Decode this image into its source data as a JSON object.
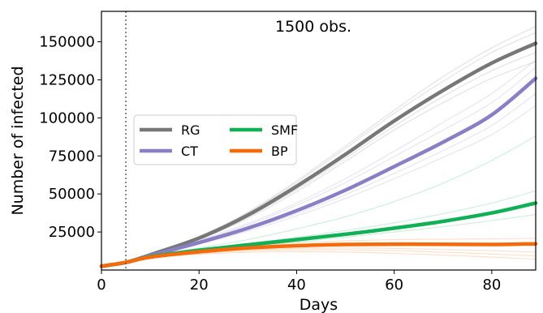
{
  "chart_data": {
    "type": "line",
    "title": "",
    "annotation": "1500 obs.",
    "xlabel": "Days",
    "ylabel": "Number of infected",
    "xlim": [
      0,
      89
    ],
    "ylim": [
      0,
      170000
    ],
    "xticks": [
      0,
      20,
      40,
      60,
      80
    ],
    "yticks": [
      25000,
      50000,
      75000,
      100000,
      125000,
      150000
    ],
    "grid": false,
    "legend_position": "center-left",
    "legend_columns": 2,
    "vline_x": 5,
    "x": [
      0,
      5,
      10,
      20,
      30,
      40,
      50,
      60,
      70,
      80,
      89
    ],
    "series": [
      {
        "name": "RG",
        "color": "#777777",
        "values": [
          2500,
          5000,
          10000,
          21000,
          36000,
          55000,
          76000,
          98000,
          118000,
          136000,
          149000
        ],
        "samples": [
          [
            2500,
            5000,
            10000,
            21500,
            37500,
            57500,
            80000,
            103000,
            124000,
            143000,
            156000
          ],
          [
            2500,
            5000,
            9800,
            20500,
            35000,
            53000,
            73500,
            94500,
            114000,
            131000,
            143000
          ],
          [
            2500,
            5000,
            10200,
            22000,
            38000,
            58500,
            81500,
            105000,
            127000,
            146000,
            160000
          ],
          [
            2500,
            5000,
            9700,
            20000,
            34000,
            51500,
            71500,
            92000,
            110000,
            126000,
            137000
          ]
        ]
      },
      {
        "name": "CT",
        "color": "#8a7fc5",
        "values": [
          2500,
          5000,
          9500,
          18000,
          27500,
          39000,
          52500,
          68000,
          84000,
          102000,
          126000
        ],
        "samples": [
          [
            2500,
            5000,
            9800,
            19000,
            29500,
            42500,
            57500,
            74500,
            92000,
            110000,
            133000
          ],
          [
            2500,
            5000,
            9300,
            17500,
            26500,
            37000,
            49500,
            63500,
            78500,
            95000,
            116000
          ],
          [
            2500,
            5000,
            9900,
            19500,
            30500,
            44000,
            60000,
            78000,
            97000,
            116000,
            138000
          ],
          [
            2500,
            5000,
            9200,
            17000,
            25500,
            35500,
            47000,
            60000,
            74000,
            89000,
            108000
          ]
        ]
      },
      {
        "name": "SMF",
        "color": "#12b056",
        "values": [
          2500,
          5000,
          8800,
          13000,
          16500,
          20000,
          23500,
          27500,
          32000,
          37500,
          44000
        ],
        "samples": [
          [
            2500,
            5000,
            9000,
            14500,
            20000,
            27000,
            35000,
            45000,
            57000,
            72000,
            88000
          ],
          [
            2500,
            5000,
            8900,
            13500,
            17500,
            21500,
            26000,
            31000,
            37000,
            44000,
            52000
          ],
          [
            2500,
            5000,
            8700,
            12500,
            15500,
            18500,
            21500,
            25000,
            28500,
            32500,
            36500
          ]
        ]
      },
      {
        "name": "BP",
        "color": "#f56a0a",
        "values": [
          2500,
          5000,
          8500,
          12000,
          14500,
          16000,
          16800,
          17000,
          16900,
          16800,
          17200
        ],
        "samples": [
          [
            2500,
            5000,
            8700,
            12800,
            15800,
            18000,
            19200,
            20000,
            20300,
            20500,
            20800
          ],
          [
            2500,
            5000,
            8300,
            11200,
            13200,
            14200,
            14500,
            14200,
            13500,
            12700,
            11800
          ],
          [
            2500,
            5000,
            8200,
            10800,
            12500,
            13200,
            13300,
            12800,
            11800,
            10500,
            9300
          ],
          [
            2500,
            5000,
            8100,
            10300,
            11600,
            12000,
            11800,
            11000,
            9800,
            8500,
            7200
          ]
        ]
      }
    ]
  }
}
